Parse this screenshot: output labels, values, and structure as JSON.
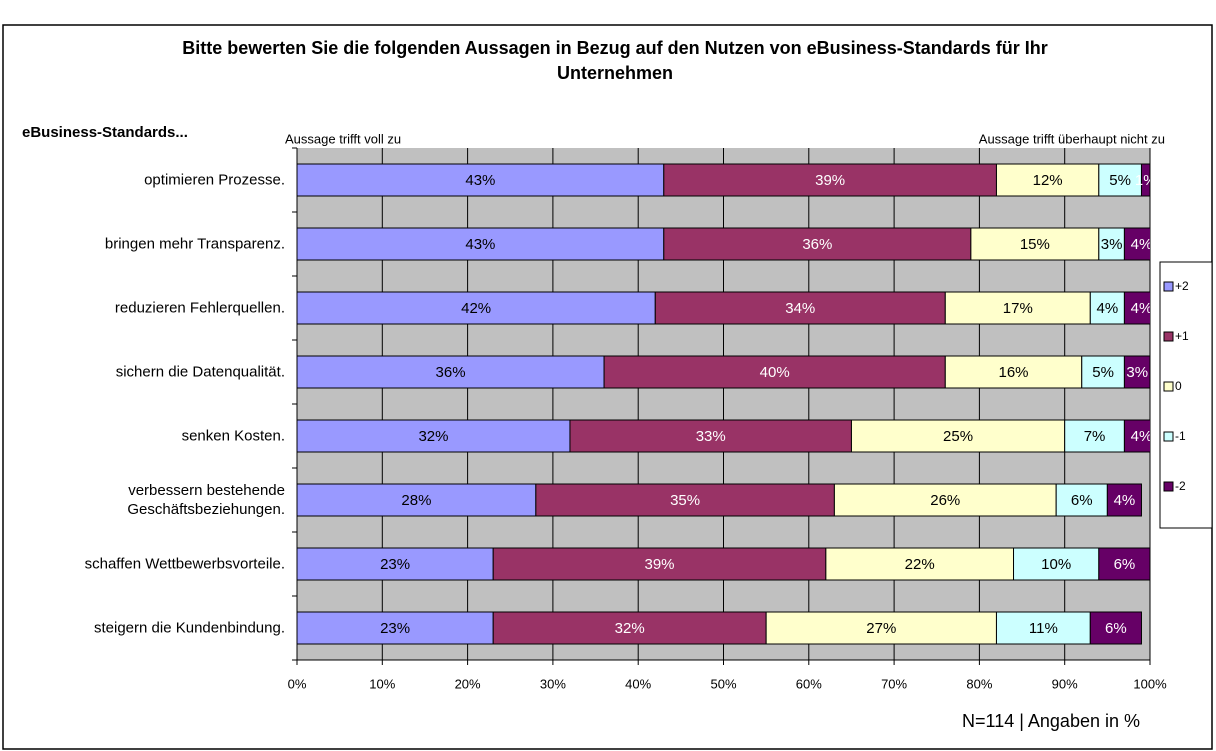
{
  "chart_data": {
    "type": "stacked_barh",
    "title": "Bitte bewerten Sie die folgenden Aussagen in Bezug auf den Nutzen von eBusiness-Standards für Ihr Unternehmen",
    "y_axis_label": "eBusiness-Standards...",
    "left_note": "Aussage trifft voll zu",
    "right_note": "Aussage trifft überhaupt nicht zu",
    "footnote": "N=114 | Angaben in %",
    "categories": [
      "optimieren Prozesse.",
      "bringen mehr Transparenz.",
      "reduzieren Fehlerquellen.",
      "sichern die Datenqualität.",
      "senken Kosten.",
      "verbessern bestehende Geschäftsbeziehungen.",
      "schaffen Wettbewerbsvorteile.",
      "steigern die Kundenbindung."
    ],
    "series": [
      {
        "name": "+2",
        "color": "#9999ff",
        "label_color": "#000000",
        "values": [
          43,
          43,
          42,
          36,
          32,
          28,
          23,
          23
        ],
        "value_labels": [
          "43%",
          "43%",
          "42%",
          "36%",
          "32%",
          "28%",
          "23%",
          "23%"
        ]
      },
      {
        "name": "+1",
        "color": "#993366",
        "label_color": "#ffffff",
        "values": [
          39,
          36,
          34,
          40,
          33,
          35,
          39,
          32
        ],
        "value_labels": [
          "39%",
          "36%",
          "34%",
          "40%",
          "33%",
          "35%",
          "39%",
          "32%"
        ]
      },
      {
        "name": "0",
        "color": "#ffffcc",
        "label_color": "#000000",
        "values": [
          12,
          15,
          17,
          16,
          25,
          26,
          22,
          27
        ],
        "value_labels": [
          "12%",
          "15%",
          "17%",
          "16%",
          "25%",
          "26%",
          "22%",
          "27%"
        ]
      },
      {
        "name": "-1",
        "color": "#ccffff",
        "label_color": "#000000",
        "values": [
          5,
          3,
          4,
          5,
          7,
          6,
          10,
          11
        ],
        "value_labels": [
          "5%",
          "3%",
          "4%",
          "5%",
          "7%",
          "6%",
          "10%",
          "11%"
        ]
      },
      {
        "name": "-2",
        "color": "#660066",
        "label_color": "#ffffff",
        "values": [
          1,
          4,
          4,
          3,
          4,
          4,
          6,
          6
        ],
        "value_labels": [
          "1%",
          "4%",
          "4%",
          "3%",
          "4%",
          "4%",
          "6%",
          "6%"
        ]
      }
    ],
    "xlim": [
      0,
      100
    ],
    "xticks": [
      {
        "value": 0,
        "label": "0%"
      },
      {
        "value": 10,
        "label": "10%"
      },
      {
        "value": 20,
        "label": "20%"
      },
      {
        "value": 30,
        "label": "30%"
      },
      {
        "value": 40,
        "label": "40%"
      },
      {
        "value": 50,
        "label": "50%"
      },
      {
        "value": 60,
        "label": "60%"
      },
      {
        "value": 70,
        "label": "70%"
      },
      {
        "value": 80,
        "label": "80%"
      },
      {
        "value": 90,
        "label": "90%"
      },
      {
        "value": 100,
        "label": "100%"
      }
    ],
    "grid": true,
    "plot_background": "#c0c0c0",
    "legend": "right"
  }
}
